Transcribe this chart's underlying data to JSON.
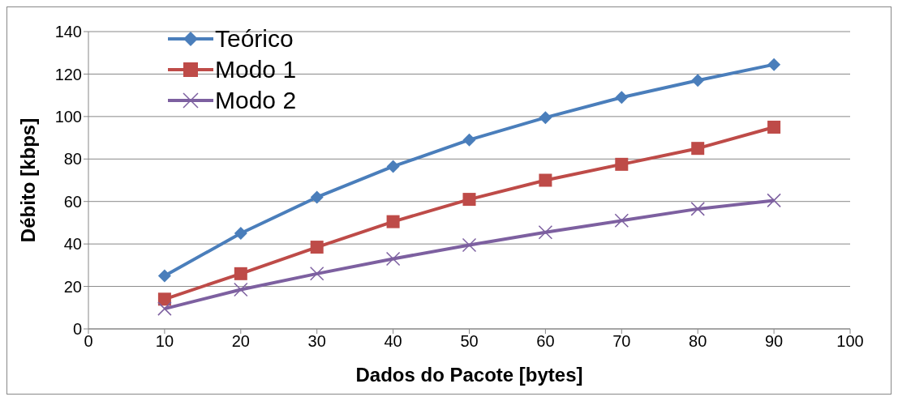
{
  "chart_data": {
    "type": "line",
    "xlabel": "Dados do Pacote [bytes]",
    "ylabel": "Débito [kbps]",
    "x": [
      10,
      20,
      30,
      40,
      50,
      60,
      70,
      80,
      90
    ],
    "xlim": [
      0,
      100
    ],
    "xticks": [
      0,
      10,
      20,
      30,
      40,
      50,
      60,
      70,
      80,
      90,
      100
    ],
    "ylim": [
      0,
      140
    ],
    "yticks": [
      0,
      20,
      40,
      60,
      80,
      100,
      120,
      140
    ],
    "grid": "y",
    "legend": "top left",
    "series": [
      {
        "name": "Teórico",
        "color": "#4a7ebb",
        "marker": "diamond",
        "values": [
          25,
          45,
          62,
          76.5,
          89,
          99.5,
          109,
          117,
          124.5
        ]
      },
      {
        "name": "Modo 1",
        "color": "#be4b48",
        "marker": "square",
        "values": [
          14,
          26,
          38.5,
          50.5,
          61,
          70,
          77.5,
          85,
          95
        ]
      },
      {
        "name": "Modo 2",
        "color": "#7d60a0",
        "marker": "cross",
        "values": [
          9.5,
          18.5,
          26,
          33,
          39.5,
          45.5,
          51,
          56.5,
          60.5
        ]
      }
    ]
  }
}
